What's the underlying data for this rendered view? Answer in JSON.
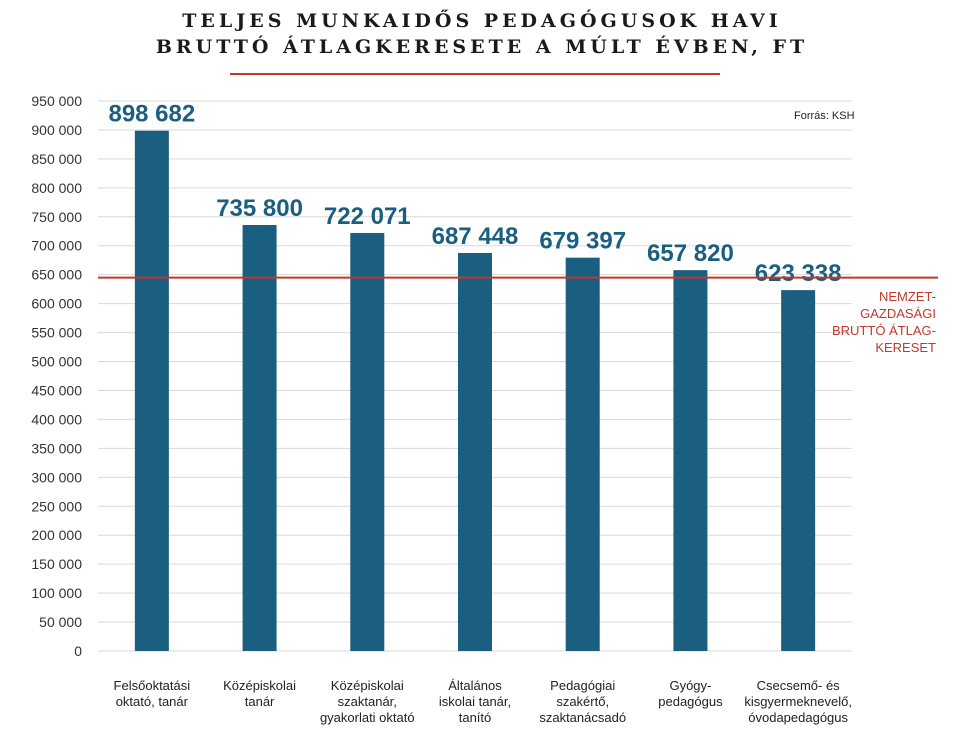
{
  "header": {
    "title_line1": "TELJES MUNKAIDŐS PEDAGÓGUSOK HAVI",
    "title_line2": "BRUTTÓ ÁTLAGKERESETE A MÚLT ÉVBEN, FT",
    "source": "Forrás: KSH"
  },
  "colors": {
    "bar": "#1a5e80",
    "reference_line": "#c0392b",
    "grid": "#d9d9d9"
  },
  "chart_data": {
    "type": "bar",
    "title": "TELJES MUNKAIDŐS PEDAGÓGUSOK HAVI BRUTTÓ ÁTLAGKERESETE A MÚLT ÉVBEN, FT",
    "categories": [
      [
        "Felsőoktatási",
        "oktató, tanár"
      ],
      [
        "Középiskolai",
        "tanár"
      ],
      [
        "Középiskolai",
        "szaktanár,",
        "gyakorlati oktató"
      ],
      [
        "Általános",
        "iskolai tanár,",
        "tanító"
      ],
      [
        "Pedagógiai",
        "szakértő,",
        "szaktanácsadó"
      ],
      [
        "Gyógy-",
        "pedagógus"
      ],
      [
        "Csecsemő- és",
        "kisgyermeknevelő,",
        "óvodapedagógus"
      ]
    ],
    "values": [
      898682,
      735800,
      722071,
      687448,
      679397,
      657820,
      623338
    ],
    "value_labels": [
      "898 682",
      "735 800",
      "722 071",
      "687 448",
      "679 397",
      "657 820",
      "623 338"
    ],
    "yticks": [
      0,
      50000,
      100000,
      150000,
      200000,
      250000,
      300000,
      350000,
      400000,
      450000,
      500000,
      550000,
      600000,
      650000,
      700000,
      750000,
      800000,
      850000,
      900000,
      950000
    ],
    "ytick_labels": [
      "0",
      "50 000",
      "100 000",
      "150 000",
      "200 000",
      "250 000",
      "300 000",
      "350 000",
      "400 000",
      "450 000",
      "500 000",
      "550 000",
      "600 000",
      "650 000",
      "700 000",
      "750 000",
      "800 000",
      "850 000",
      "900 000",
      "950 000"
    ],
    "ylim": [
      0,
      950000
    ],
    "grid": true,
    "reference_line": {
      "value": 645000,
      "label_lines": [
        "NEMZET-",
        "GAZDASÁGI",
        "BRUTTÓ ÁTLAG-",
        "KERESET"
      ]
    }
  }
}
